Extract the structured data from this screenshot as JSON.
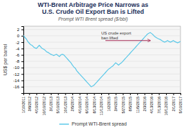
{
  "chart_data": {
    "type": "line",
    "title": "WTI-Brent Arbitrage Price Narrows as\nU.S. Crude Oil Export Ban is Lifted",
    "subtitle": "Prompt WTI Brent spread ($/bbl)",
    "y_label": "US$ per barrel",
    "categories": [
      "1/10/2011",
      null,
      null,
      null,
      "3/9/2012",
      null,
      null,
      null,
      null,
      "4/10/2012",
      null,
      null,
      null,
      null,
      "10/10/2012",
      null,
      null,
      null,
      null,
      "3/1/2013",
      null,
      null,
      null,
      null,
      "5/10/2013",
      null,
      null,
      null,
      null,
      "10/1/2013",
      null,
      null,
      null,
      null,
      "2/5/2014",
      null,
      null,
      null,
      null,
      "4/10/2014",
      null,
      null,
      null,
      null,
      "6/10/2014",
      null,
      null,
      null,
      null,
      "8/13/2014",
      null,
      null,
      null,
      null,
      "11/12/2014",
      null,
      null,
      null,
      null,
      "1/2/2015",
      null,
      null,
      null,
      null,
      "3/4/2015",
      null,
      null,
      null,
      null,
      "5/27/2015",
      null,
      null,
      null,
      null,
      "8/5/2015",
      null,
      null,
      null,
      null,
      "11/5/2015",
      null,
      null,
      null,
      null,
      "2/3/2016",
      null,
      null,
      null,
      null,
      "4/13/2016",
      null,
      null,
      null,
      null,
      "7/13/2016",
      null,
      null,
      null,
      null,
      "10/12/2016",
      null,
      null,
      null,
      null,
      "2/1/2017",
      null,
      null,
      null,
      null,
      "5/10/2017"
    ],
    "series": [
      {
        "name": "Prompt WTI-Brent spread",
        "color": "#5bc8e8",
        "values": [
          0.1,
          -0.5,
          -1.0,
          -1.8,
          -2.3,
          -2.8,
          -3.0,
          -3.5,
          -3.8,
          -4.0,
          -3.5,
          -3.0,
          -3.5,
          -4.0,
          -4.2,
          -4.5,
          -5.0,
          -5.2,
          -5.5,
          -5.8,
          -6.0,
          -6.2,
          -6.0,
          -5.8,
          -6.2,
          -6.5,
          -6.0,
          -5.8,
          -6.0,
          -6.5,
          -7.0,
          -7.5,
          -8.0,
          -8.5,
          -9.2,
          -9.8,
          -10.2,
          -11.0,
          -11.5,
          -12.0,
          -12.5,
          -13.0,
          -13.5,
          -14.0,
          -14.5,
          -15.0,
          -15.5,
          -16.0,
          -15.8,
          -15.5,
          -15.0,
          -14.5,
          -14.0,
          -13.5,
          -13.0,
          -12.5,
          -12.0,
          -11.5,
          -11.0,
          -10.5,
          -10.2,
          -9.8,
          -9.5,
          -9.0,
          -8.5,
          -8.8,
          -9.2,
          -8.8,
          -8.5,
          -8.0,
          -7.5,
          -7.0,
          -6.5,
          -6.0,
          -5.5,
          -5.0,
          -4.5,
          -4.0,
          -3.5,
          -3.0,
          -2.5,
          -2.0,
          -1.5,
          -1.0,
          -0.5,
          0.0,
          0.5,
          0.8,
          1.0,
          0.7,
          0.3,
          -0.2,
          -0.5,
          -0.8,
          -1.0,
          -1.2,
          -1.5,
          -1.8,
          -2.0,
          -1.8,
          -1.5,
          -1.8,
          -2.0,
          -1.8,
          -1.5,
          -1.8,
          -2.0,
          -2.2,
          -2.0,
          -1.8
        ]
      }
    ],
    "annotations": [
      {
        "text": "US crude export\nban lifted",
        "x": 55,
        "y": -1.5,
        "x_end": 88
      }
    ],
    "ylim": [
      -18,
      3
    ],
    "yticks": [
      2,
      0,
      -2,
      -4,
      -6,
      -8,
      -10,
      -12,
      -14,
      -16
    ],
    "grid": true,
    "legend": "bottom"
  }
}
